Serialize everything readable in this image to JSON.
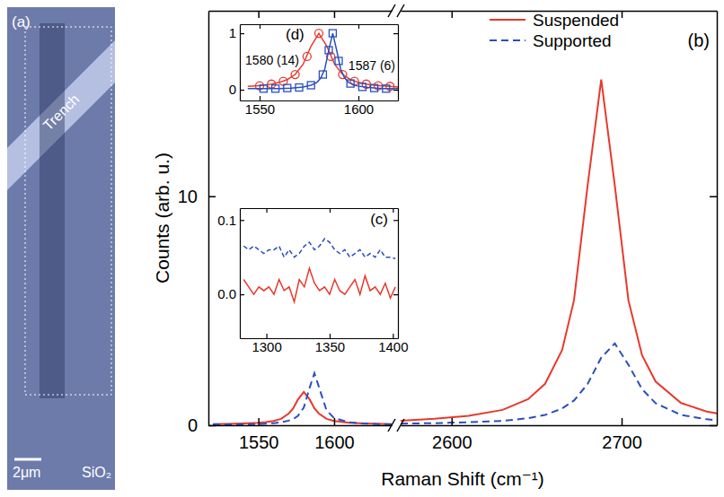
{
  "image_panel": {
    "label": "(a)",
    "trench": "Trench",
    "scale_bar": "2μm",
    "substrate": "SiO₂"
  },
  "chart_data": [
    {
      "type": "line",
      "ylabel": "Counts (arb. u.)",
      "x": [
        1520,
        1530,
        1540,
        1550,
        1555,
        1560,
        1565,
        1570,
        1573,
        1576,
        1580,
        1584,
        1587,
        1590,
        1595,
        1600,
        1610,
        1620,
        1630,
        1638
      ],
      "xlim": [
        1517,
        1638
      ],
      "xticks": [
        1550,
        1600
      ],
      "ylim": [
        0,
        18.1
      ],
      "yticks": [
        0,
        10
      ],
      "series": [
        {
          "color": "#e8392c",
          "line_style": "solid",
          "values": [
            0.05,
            0.06,
            0.08,
            0.11,
            0.14,
            0.19,
            0.28,
            0.51,
            0.74,
            1.11,
            1.45,
            1.11,
            0.74,
            0.51,
            0.28,
            0.19,
            0.11,
            0.08,
            0.06,
            0.05
          ]
        },
        {
          "color": "#2a4fbf",
          "line_style": "dashed",
          "values": [
            0.04,
            0.04,
            0.04,
            0.05,
            0.07,
            0.09,
            0.13,
            0.2,
            0.27,
            0.4,
            0.77,
            1.67,
            2.27,
            1.67,
            0.65,
            0.31,
            0.13,
            0.07,
            0.05,
            0.04
          ]
        }
      ]
    },
    {
      "type": "line",
      "title": "(b)",
      "xlabel": "Raman Shift (cm⁻¹)",
      "legend": "upper right",
      "tick_labels": "x",
      "x": [
        2570,
        2590,
        2610,
        2630,
        2645,
        2655,
        2665,
        2672,
        2680,
        2688,
        2696,
        2704,
        2712,
        2720,
        2735,
        2750,
        2760
      ],
      "xlim": [
        2570,
        2756
      ],
      "xticks": [
        2600,
        2700
      ],
      "ylim": [
        0,
        18.1
      ],
      "yticks": [
        0,
        10
      ],
      "series": [
        {
          "name": "Suspended",
          "color": "#e8392c",
          "line_style": "solid",
          "values": [
            0.2,
            0.28,
            0.41,
            0.67,
            1.14,
            1.81,
            3.28,
            5.46,
            10.47,
            15.1,
            10.47,
            5.46,
            3.06,
            1.91,
            0.97,
            0.6,
            0.46
          ]
        },
        {
          "name": "Supported",
          "color": "#2a4fbf",
          "line_style": "dashed",
          "values": [
            0.07,
            0.09,
            0.13,
            0.19,
            0.31,
            0.45,
            0.73,
            1.08,
            1.8,
            2.95,
            3.57,
            2.64,
            1.58,
            0.96,
            0.45,
            0.26,
            0.19
          ]
        }
      ]
    },
    {
      "type": "line",
      "title": "(c)",
      "x": [
        1282,
        1286,
        1290,
        1294,
        1298,
        1302,
        1306,
        1310,
        1314,
        1318,
        1322,
        1326,
        1330,
        1334,
        1338,
        1342,
        1346,
        1350,
        1354,
        1358,
        1362,
        1366,
        1370,
        1374,
        1378,
        1382,
        1386,
        1390,
        1394,
        1398,
        1402
      ],
      "xlim": [
        1279,
        1404
      ],
      "xticks": [
        1300,
        1350,
        1400
      ],
      "ylim": [
        -0.059,
        0.116
      ],
      "yticks": [
        {
          "value": 0,
          "label": "0.0"
        },
        {
          "value": 0.1,
          "label": "0.1"
        }
      ],
      "series": [
        {
          "color": "#e8392c",
          "line_style": "solid",
          "values": [
            0.02,
            0.01,
            0,
            0.01,
            0.005,
            0.01,
            0,
            0.02,
            0.005,
            0.01,
            -0.01,
            0.02,
            0.01,
            0.035,
            0.015,
            0.005,
            0.01,
            0,
            0.02,
            0.005,
            0,
            0.01,
            0.02,
            0,
            0.025,
            0.005,
            0.01,
            0,
            0.015,
            -0.005,
            0.01
          ]
        },
        {
          "color": "#2a4fbf",
          "line_style": "dashed",
          "values": [
            0.065,
            0.06,
            0.065,
            0.06,
            0.055,
            0.06,
            0.06,
            0.065,
            0.05,
            0.06,
            0.05,
            0.055,
            0.065,
            0.07,
            0.06,
            0.065,
            0.075,
            0.07,
            0.06,
            0.055,
            0.06,
            0.05,
            0.055,
            0.06,
            0.05,
            0.055,
            0.05,
            0.06,
            0.05,
            0.05,
            0.048
          ]
        }
      ]
    },
    {
      "type": "line",
      "title": "(d)",
      "annotations": [
        "1580 (14)",
        "1587 (6)"
      ],
      "xlim": [
        1540,
        1620
      ],
      "xticks": [
        1550,
        1600
      ],
      "ylim": [
        -0.19,
        1.16
      ],
      "yticks": [
        0,
        1
      ],
      "series": [
        {
          "type": "scatter",
          "marker": "circle",
          "color": "#e8392c",
          "x": [
            1550,
            1556,
            1562,
            1568,
            1574,
            1580,
            1586,
            1592,
            1598,
            1604,
            1610,
            1616
          ],
          "values": [
            0.07,
            0.1,
            0.15,
            0.27,
            0.59,
            1,
            0.59,
            0.27,
            0.15,
            0.1,
            0.07,
            0.06
          ]
        },
        {
          "type": "line",
          "line_style": "solid",
          "color": "#e8392c",
          "x": [
            1544,
            1548,
            1552,
            1556,
            1560,
            1564,
            1568,
            1572,
            1576,
            1580,
            1584,
            1588,
            1592,
            1596,
            1600,
            1604,
            1608,
            1612,
            1616,
            1620
          ],
          "values": [
            0.06,
            0.07,
            0.08,
            0.1,
            0.13,
            0.18,
            0.27,
            0.45,
            0.77,
            1,
            0.77,
            0.45,
            0.27,
            0.18,
            0.13,
            0.1,
            0.08,
            0.07,
            0.06,
            0.05
          ]
        },
        {
          "type": "scatter",
          "marker": "square",
          "color": "#2a4fbf",
          "x": [
            1552,
            1558,
            1564,
            1570,
            1576,
            1582,
            1585,
            1587,
            1590,
            1596,
            1602,
            1608,
            1614
          ],
          "values": [
            0.02,
            0.02,
            0.03,
            0.04,
            0.08,
            0.27,
            0.7,
            1,
            0.51,
            0.11,
            0.05,
            0.03,
            0.02
          ]
        },
        {
          "type": "line",
          "line_style": "solid",
          "color": "#2a4fbf",
          "x": [
            1544,
            1552,
            1560,
            1566,
            1572,
            1576,
            1579,
            1581,
            1583,
            1585,
            1587,
            1589,
            1591,
            1593,
            1595,
            1599,
            1605,
            1612,
            1620
          ],
          "values": [
            0.02,
            0.02,
            0.02,
            0.03,
            0.05,
            0.08,
            0.13,
            0.21,
            0.37,
            0.7,
            1,
            0.7,
            0.37,
            0.21,
            0.13,
            0.07,
            0.04,
            0.02,
            0.02
          ]
        }
      ]
    }
  ]
}
